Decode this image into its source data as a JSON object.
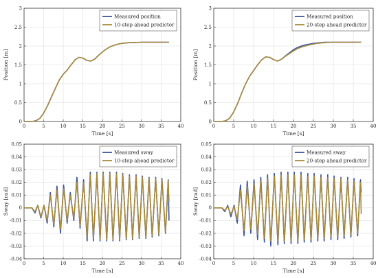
{
  "chart_data": [
    {
      "type": "line",
      "xlabel": "Time [s]",
      "ylabel": "Position [m]",
      "xlim": [
        0,
        40
      ],
      "ylim": [
        0,
        3
      ],
      "xticks": [
        "0",
        "5",
        "10",
        "15",
        "20",
        "25",
        "30",
        "35",
        "40"
      ],
      "yticks": [
        "0",
        "0.5",
        "1",
        "1.5",
        "2",
        "2.5",
        "3"
      ],
      "grid": true,
      "legend_position": "top-right",
      "series": [
        {
          "name": "Measured position",
          "color": "#3a55a4",
          "x": [
            0,
            2,
            3,
            4,
            5,
            6,
            7,
            8,
            9,
            10,
            11,
            12,
            13,
            14,
            15,
            16,
            17,
            18,
            19,
            20,
            21,
            22,
            23,
            24,
            25,
            26,
            27,
            28,
            30,
            32,
            34,
            37
          ],
          "y": [
            0,
            0,
            0.02,
            0.08,
            0.22,
            0.42,
            0.65,
            0.88,
            1.1,
            1.25,
            1.36,
            1.5,
            1.63,
            1.7,
            1.68,
            1.62,
            1.6,
            1.65,
            1.75,
            1.84,
            1.92,
            1.98,
            2.02,
            2.05,
            2.07,
            2.08,
            2.09,
            2.09,
            2.1,
            2.1,
            2.1,
            2.1
          ]
        },
        {
          "name": "10-step ahead predictor",
          "color": "#a88a3a",
          "x": [
            0,
            2,
            3,
            4,
            5,
            6,
            7,
            8,
            9,
            10,
            11,
            12,
            13,
            14,
            15,
            16,
            17,
            18,
            19,
            20,
            21,
            22,
            23,
            24,
            25,
            26,
            27,
            28,
            30,
            32,
            34,
            37
          ],
          "y": [
            0,
            0,
            0.02,
            0.08,
            0.22,
            0.42,
            0.65,
            0.88,
            1.1,
            1.25,
            1.36,
            1.5,
            1.63,
            1.7,
            1.68,
            1.62,
            1.6,
            1.65,
            1.75,
            1.84,
            1.92,
            1.98,
            2.02,
            2.05,
            2.07,
            2.08,
            2.09,
            2.09,
            2.1,
            2.1,
            2.1,
            2.1
          ]
        }
      ]
    },
    {
      "type": "line",
      "xlabel": "Time [s]",
      "ylabel": "Position [m]",
      "xlim": [
        0,
        40
      ],
      "ylim": [
        0,
        3
      ],
      "xticks": [
        "0",
        "5",
        "10",
        "15",
        "20",
        "25",
        "30",
        "35",
        "40"
      ],
      "yticks": [
        "0",
        "0.5",
        "1",
        "1.5",
        "2",
        "2.5",
        "3"
      ],
      "grid": true,
      "legend_position": "top-right",
      "series": [
        {
          "name": "Measured position",
          "color": "#3a55a4",
          "x": [
            0,
            2,
            3,
            4,
            5,
            6,
            7,
            8,
            9,
            10,
            11,
            12,
            13,
            14,
            15,
            16,
            17,
            18,
            19,
            20,
            21,
            22,
            23,
            24,
            25,
            26,
            27,
            28,
            30,
            32,
            34,
            37
          ],
          "y": [
            0,
            0,
            0.02,
            0.09,
            0.25,
            0.48,
            0.75,
            1.0,
            1.2,
            1.35,
            1.5,
            1.63,
            1.71,
            1.7,
            1.64,
            1.6,
            1.65,
            1.74,
            1.82,
            1.9,
            1.96,
            2.0,
            2.03,
            2.05,
            2.07,
            2.08,
            2.09,
            2.1,
            2.1,
            2.1,
            2.1,
            2.1
          ]
        },
        {
          "name": "20-step ahead predictor",
          "color": "#a88a3a",
          "x": [
            0,
            2,
            3,
            4,
            5,
            6,
            7,
            8,
            9,
            10,
            11,
            12,
            13,
            14,
            15,
            16,
            17,
            18,
            19,
            20,
            21,
            22,
            23,
            24,
            25,
            26,
            27,
            28,
            30,
            32,
            34,
            37
          ],
          "y": [
            0,
            0,
            0.02,
            0.09,
            0.25,
            0.48,
            0.75,
            1.0,
            1.2,
            1.35,
            1.5,
            1.63,
            1.71,
            1.7,
            1.64,
            1.6,
            1.65,
            1.73,
            1.8,
            1.87,
            1.93,
            1.97,
            2.0,
            2.03,
            2.05,
            2.07,
            2.08,
            2.09,
            2.1,
            2.1,
            2.1,
            2.1
          ]
        }
      ]
    },
    {
      "type": "line",
      "xlabel": "Time [s]",
      "ylabel": "Sway [rad]",
      "xlim": [
        0,
        40
      ],
      "ylim": [
        -0.04,
        0.05
      ],
      "xticks": [
        "0",
        "5",
        "10",
        "15",
        "20",
        "25",
        "30",
        "35",
        "40"
      ],
      "yticks": [
        "-0.04",
        "-0.03",
        "-0.02",
        "-0.01",
        "0",
        "0.01",
        "0.02",
        "0.03",
        "0.04",
        "0.05"
      ],
      "grid": true,
      "legend_position": "top-right",
      "series": [
        {
          "name": "Measured sway",
          "color": "#3a55a4",
          "x": [
            0,
            2,
            2.8,
            3.5,
            4.3,
            5.1,
            5.9,
            6.7,
            7.6,
            8.4,
            9.3,
            10.1,
            11,
            11.8,
            12.7,
            13.5,
            14.3,
            15.2,
            16.1,
            16.9,
            17.7,
            18.6,
            19.4,
            20.2,
            21.1,
            21.9,
            22.7,
            23.6,
            24.4,
            25.2,
            26.1,
            26.9,
            27.7,
            28.6,
            29.4,
            30.2,
            31.1,
            31.9,
            32.7,
            33.6,
            34.4,
            35.2,
            36.1,
            36.8,
            37
          ],
          "y": [
            0,
            0,
            -0.004,
            0.002,
            -0.008,
            0.002,
            -0.012,
            0.012,
            -0.015,
            0.017,
            -0.02,
            0.018,
            -0.012,
            0.012,
            -0.01,
            0.024,
            -0.016,
            0.022,
            -0.026,
            0.028,
            -0.026,
            0.028,
            -0.026,
            0.028,
            -0.026,
            0.028,
            -0.026,
            0.028,
            -0.026,
            0.027,
            -0.025,
            0.026,
            -0.025,
            0.026,
            -0.024,
            0.025,
            -0.024,
            0.024,
            -0.023,
            0.024,
            -0.022,
            0.023,
            -0.02,
            0.022,
            -0.01
          ]
        },
        {
          "name": "10-step ahead predictor",
          "color": "#a88a3a",
          "x": [
            0,
            2,
            2.8,
            3.5,
            4.3,
            5.1,
            5.9,
            6.7,
            7.6,
            8.4,
            9.3,
            10.1,
            11,
            11.8,
            12.7,
            13.5,
            14.3,
            15.2,
            16.1,
            16.9,
            17.7,
            18.6,
            19.4,
            20.2,
            21.1,
            21.9,
            22.7,
            23.6,
            24.4,
            25.2,
            26.1,
            26.9,
            27.7,
            28.6,
            29.4,
            30.2,
            31.1,
            31.9,
            32.7,
            33.6,
            34.4,
            35.2,
            36.1,
            36.8,
            37
          ],
          "y": [
            0,
            0,
            -0.003,
            0.002,
            -0.007,
            0.002,
            -0.01,
            0.01,
            -0.013,
            0.014,
            -0.017,
            0.015,
            -0.01,
            0.01,
            -0.008,
            0.02,
            -0.014,
            0.02,
            -0.023,
            0.026,
            -0.024,
            0.027,
            -0.025,
            0.027,
            -0.025,
            0.027,
            -0.025,
            0.027,
            -0.025,
            0.026,
            -0.024,
            0.025,
            -0.024,
            0.025,
            -0.023,
            0.024,
            -0.023,
            0.023,
            -0.022,
            0.023,
            -0.021,
            0.022,
            -0.019,
            0.021,
            0.005
          ]
        }
      ]
    },
    {
      "type": "line",
      "xlabel": "Time [s]",
      "ylabel": "Sway [rad]",
      "xlim": [
        0,
        40
      ],
      "ylim": [
        -0.04,
        0.05
      ],
      "xticks": [
        "0",
        "5",
        "10",
        "15",
        "20",
        "25",
        "30",
        "35",
        "40"
      ],
      "yticks": [
        "-0.04",
        "-0.03",
        "-0.02",
        "-0.01",
        "0",
        "0.01",
        "0.02",
        "0.03",
        "0.04",
        "0.05"
      ],
      "grid": true,
      "legend_position": "top-right",
      "series": [
        {
          "name": "Measured sway",
          "color": "#3a55a4",
          "x": [
            0,
            2,
            2.8,
            3.5,
            4.3,
            5.1,
            5.9,
            6.7,
            7.6,
            8.4,
            9.3,
            10.1,
            11,
            11.8,
            12.7,
            13.5,
            14.3,
            15.2,
            16.1,
            16.9,
            17.7,
            18.6,
            19.4,
            20.2,
            21.1,
            21.9,
            22.7,
            23.6,
            24.4,
            25.2,
            26.1,
            26.9,
            27.7,
            28.6,
            29.4,
            30.2,
            31.1,
            31.9,
            32.7,
            33.6,
            34.4,
            35.2,
            36.1,
            36.8,
            37
          ],
          "y": [
            0,
            0,
            -0.003,
            0.002,
            -0.007,
            0.002,
            -0.012,
            0.018,
            -0.022,
            0.021,
            -0.02,
            0.022,
            -0.025,
            0.024,
            -0.027,
            0.026,
            -0.03,
            0.027,
            -0.029,
            0.028,
            -0.028,
            0.028,
            -0.028,
            0.028,
            -0.028,
            0.028,
            -0.027,
            0.027,
            -0.027,
            0.027,
            -0.026,
            0.026,
            -0.026,
            0.026,
            -0.025,
            0.025,
            -0.025,
            0.024,
            -0.024,
            0.024,
            -0.023,
            0.023,
            -0.022,
            0.022,
            0.012
          ]
        },
        {
          "name": "20-step ahead predictor",
          "color": "#a88a3a",
          "x": [
            0,
            2,
            2.8,
            3.5,
            4.3,
            5.1,
            5.9,
            6.7,
            7.6,
            8.4,
            9.3,
            10.1,
            11,
            11.8,
            12.7,
            13.5,
            14.3,
            15.2,
            16.1,
            16.9,
            17.7,
            18.6,
            19.4,
            20.2,
            21.1,
            21.9,
            22.7,
            23.6,
            24.4,
            25.2,
            26.1,
            26.9,
            27.7,
            28.6,
            29.4,
            30.2,
            31.1,
            31.9,
            32.7,
            33.6,
            34.4,
            35.2,
            36.1,
            36.8,
            37
          ],
          "y": [
            0,
            0,
            -0.002,
            0.001,
            -0.005,
            0.001,
            -0.009,
            0.014,
            -0.018,
            0.017,
            -0.017,
            0.019,
            -0.021,
            0.021,
            -0.024,
            0.023,
            -0.026,
            0.025,
            -0.026,
            0.026,
            -0.026,
            0.026,
            -0.026,
            0.026,
            -0.026,
            0.026,
            -0.025,
            0.025,
            -0.025,
            0.025,
            -0.024,
            0.024,
            -0.024,
            0.024,
            -0.023,
            0.023,
            -0.023,
            0.023,
            -0.022,
            0.022,
            -0.021,
            0.021,
            -0.02,
            0.02,
            -0.005
          ]
        }
      ]
    }
  ]
}
